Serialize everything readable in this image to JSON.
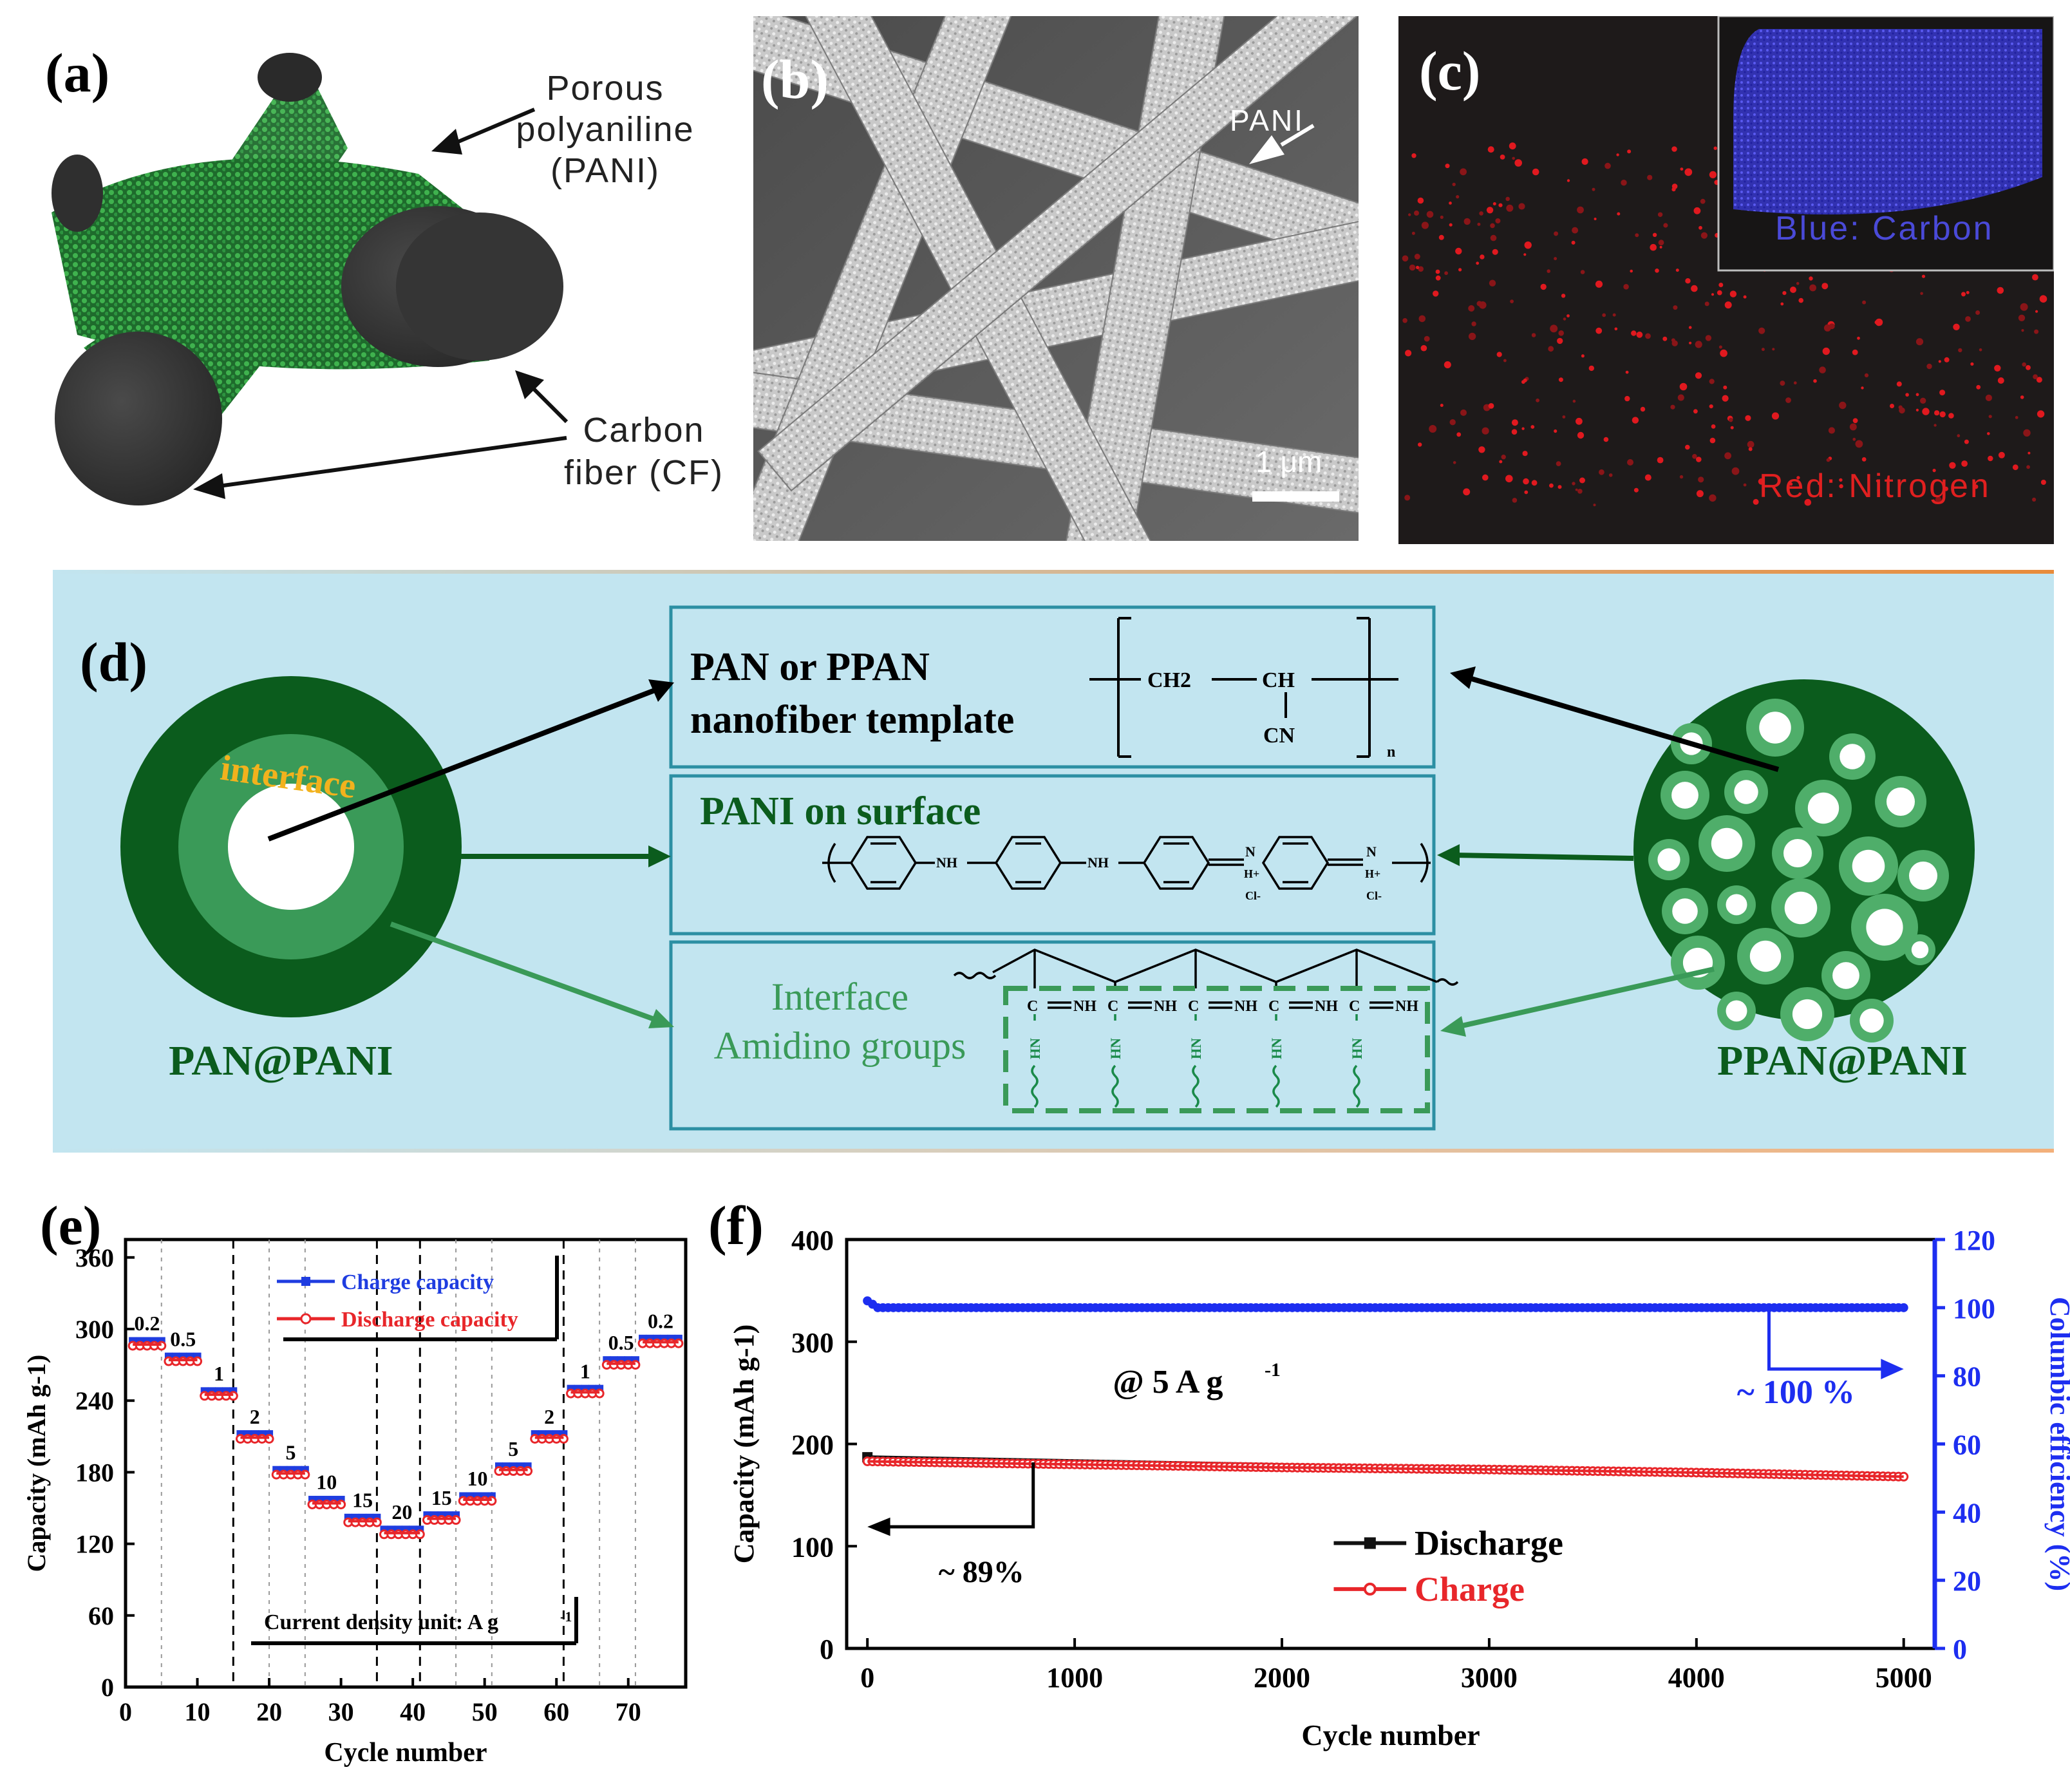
{
  "panel_a": {
    "letter": "(a)",
    "pani_label": [
      "Porous",
      "polyaniline",
      "(PANI)"
    ],
    "cf_label": [
      "Carbon",
      "fiber (CF)"
    ]
  },
  "panel_b": {
    "letter": "(b)",
    "pani_label": "PANI",
    "scale_bar": "1 μm"
  },
  "panel_c": {
    "letter": "(c)",
    "inset_label": "Blue: Carbon",
    "main_label": "Red: Nitrogen"
  },
  "panel_d": {
    "letter": "(d)",
    "left_label": "PAN@PANI",
    "right_label": "PPAN@PANI",
    "interface_word": "interface",
    "box_template": [
      "PAN or PPAN",
      "nanofiber template"
    ],
    "box_pani": "PANI on surface",
    "box_interface": [
      "Interface",
      "Amidino groups"
    ],
    "chem": {
      "ch2": "CH2",
      "ch": "CH",
      "cn": "CN",
      "n_sub": "n",
      "nh": "NH",
      "hn": "HN",
      "c_eq": "C",
      "n_plus": "N",
      "h_plus": "H+",
      "cl": "Cl-"
    },
    "colors": {
      "dark_green": "#0b5c1d",
      "mid_green": "#3a9a58",
      "light_bg": "#bfe3ef",
      "box_border": "#2c8fa3"
    }
  },
  "panel_e": {
    "letter": "(e)",
    "legend": [
      "Charge capacity",
      "Discharge capacity"
    ],
    "rate_labels": [
      "0.2",
      "0.5",
      "1",
      "2",
      "5",
      "10",
      "15",
      "20",
      "15",
      "10",
      "5",
      "2",
      "1",
      "0.5",
      "0.2"
    ],
    "note": "Current density unit: A g",
    "note_sup": "-1"
  },
  "panel_f": {
    "letter": "(f)",
    "annotation_rate": "@ 5 A g",
    "annotation_rate_sup": "-1",
    "retention": "~ 89%",
    "efficiency": "~ 100 %",
    "legend": [
      "Discharge",
      "Charge"
    ]
  },
  "chart_data": [
    {
      "id": "e",
      "type": "line",
      "title": "",
      "xlabel": "Cycle number",
      "ylabel": "Capacity (mAh g-1)",
      "xlim": [
        0,
        78
      ],
      "ylim": [
        0,
        375
      ],
      "xticks": [
        0,
        10,
        20,
        30,
        40,
        50,
        60,
        70
      ],
      "yticks": [
        0,
        60,
        120,
        180,
        240,
        300,
        360
      ],
      "dividers": [
        5,
        15,
        20,
        25,
        35,
        41,
        46,
        51,
        61,
        66,
        71
      ],
      "dashed_dividers": [
        15,
        35,
        41,
        61
      ],
      "segments": [
        {
          "x0": 1,
          "x1": 5,
          "y": 288
        },
        {
          "x0": 6,
          "x1": 10,
          "y": 275
        },
        {
          "x0": 11,
          "x1": 15,
          "y": 246
        },
        {
          "x0": 16,
          "x1": 20,
          "y": 210
        },
        {
          "x0": 21,
          "x1": 25,
          "y": 180
        },
        {
          "x0": 26,
          "x1": 30,
          "y": 155
        },
        {
          "x0": 31,
          "x1": 35,
          "y": 140
        },
        {
          "x0": 36,
          "x1": 41,
          "y": 130
        },
        {
          "x0": 42,
          "x1": 46,
          "y": 142
        },
        {
          "x0": 47,
          "x1": 51,
          "y": 158
        },
        {
          "x0": 52,
          "x1": 56,
          "y": 183
        },
        {
          "x0": 57,
          "x1": 61,
          "y": 210
        },
        {
          "x0": 62,
          "x1": 66,
          "y": 248
        },
        {
          "x0": 67,
          "x1": 71,
          "y": 272
        },
        {
          "x0": 72,
          "x1": 77,
          "y": 290
        }
      ],
      "series": [
        {
          "name": "Charge capacity",
          "color": "#1f3de0"
        },
        {
          "name": "Discharge capacity",
          "color": "#e8262a"
        }
      ]
    },
    {
      "id": "f",
      "type": "line",
      "xlabel": "Cycle number",
      "ylabel": "Capacity (mAh g-1)",
      "y2label": "Columbic efficiency (%)",
      "xlim": [
        -100,
        5150
      ],
      "ylim": [
        0,
        400
      ],
      "y2lim": [
        0,
        120
      ],
      "xticks": [
        0,
        1000,
        2000,
        3000,
        4000,
        5000
      ],
      "yticks": [
        0,
        100,
        200,
        300,
        400
      ],
      "y2ticks": [
        0,
        20,
        40,
        60,
        80,
        100,
        120
      ],
      "series": [
        {
          "name": "Discharge",
          "color": "#111111",
          "x": [
            0,
            5000
          ],
          "y": [
            187,
            168
          ]
        },
        {
          "name": "Charge",
          "color": "#e8262a",
          "x": [
            0,
            1000,
            2000,
            3000,
            4000,
            5000
          ],
          "y": [
            183,
            180,
            177,
            175,
            172,
            168
          ]
        },
        {
          "name": "Columbic efficiency",
          "axis": "y2",
          "color": "#1d2ef0",
          "x": [
            0,
            50,
            5000
          ],
          "y": [
            102,
            100,
            100
          ]
        }
      ]
    }
  ]
}
